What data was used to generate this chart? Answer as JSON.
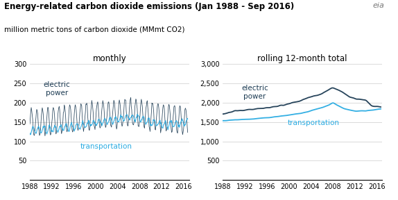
{
  "title": "Energy-related carbon dioxide emissions (Jan 1988 - Sep 2016)",
  "subtitle": "million metric tons of carbon dioxide (MMmt CO2)",
  "left_title": "monthly",
  "right_title": "rolling 12-month total",
  "left_label_electric": "electric\npower",
  "left_label_transport": "transportation",
  "right_label_electric": "electric\npower",
  "right_label_transport": "transportation",
  "left_ylim": [
    0,
    300
  ],
  "left_yticks": [
    0,
    50,
    100,
    150,
    200,
    250,
    300
  ],
  "right_ylim": [
    0,
    3000
  ],
  "right_yticks": [
    0,
    500,
    1000,
    1500,
    2000,
    2500,
    3000
  ],
  "xticks": [
    1988,
    1992,
    1996,
    2000,
    2004,
    2008,
    2012,
    2016
  ],
  "color_electric": "#1b3a52",
  "color_transport": "#29abe2",
  "bg_color": "#ffffff",
  "grid_color": "#cccccc",
  "title_fontsize": 8.5,
  "subtitle_fontsize": 7.5,
  "axis_label_fontsize": 7,
  "inner_title_fontsize": 8.5,
  "annotation_fontsize": 7.5
}
